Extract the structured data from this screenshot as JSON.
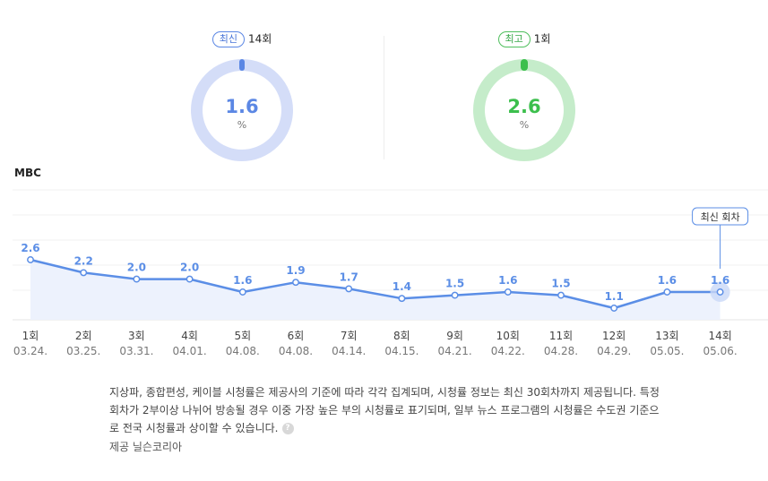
{
  "summary": {
    "latest": {
      "badge": "최신",
      "episode": "14회",
      "value": "1.6",
      "unit": "%"
    },
    "highest": {
      "badge": "최고",
      "episode": "1회",
      "value": "2.6",
      "unit": "%"
    }
  },
  "colors": {
    "line": "#5b8ee6",
    "area": "#edf2fd",
    "blue_ring": "#d4ddf8",
    "green_ring": "#c5ecca",
    "accent_blue": "#5b87e4",
    "accent_green": "#3cbf4d"
  },
  "chart_data": {
    "type": "line",
    "title": "MBC",
    "categories": [
      "1회",
      "2회",
      "3회",
      "4회",
      "5회",
      "6회",
      "7회",
      "8회",
      "9회",
      "10회",
      "11회",
      "12회",
      "13회",
      "14회"
    ],
    "dates": [
      "03.24.",
      "03.25.",
      "03.31.",
      "04.01.",
      "04.08.",
      "04.08.",
      "04.14.",
      "04.15.",
      "04.21.",
      "04.22.",
      "04.28.",
      "04.29.",
      "05.05.",
      "05.06."
    ],
    "values": [
      2.6,
      2.2,
      2.0,
      2.0,
      1.6,
      1.9,
      1.7,
      1.4,
      1.5,
      1.6,
      1.5,
      1.1,
      1.6,
      1.6
    ],
    "data_labels": [
      "2.6",
      "2.2",
      "2.0",
      "2.0",
      "1.6",
      "1.9",
      "1.7",
      "1.4",
      "1.5",
      "1.6",
      "1.5",
      "1.1",
      "1.6",
      "1.6"
    ],
    "annotation": "최신 회차",
    "grid": true,
    "area_fill": true
  },
  "note": {
    "text": "지상파, 종합편성, 케이블 시청률은 제공사의 기준에 따라 각각 집계되며, 시청률 정보는 최신 30회차까지 제공됩니다. 특정 회차가 2부이상 나뉘어 방송될 경우 이중 가장 높은 부의 시청률로 표기되며, 일부 뉴스 프로그램의 시청률은 수도권 기준으로 전국 시청률과 상이할 수 있습니다.",
    "help_icon": "question-circle-icon",
    "help_glyph": "?",
    "provider": "제공 닐슨코리아"
  }
}
